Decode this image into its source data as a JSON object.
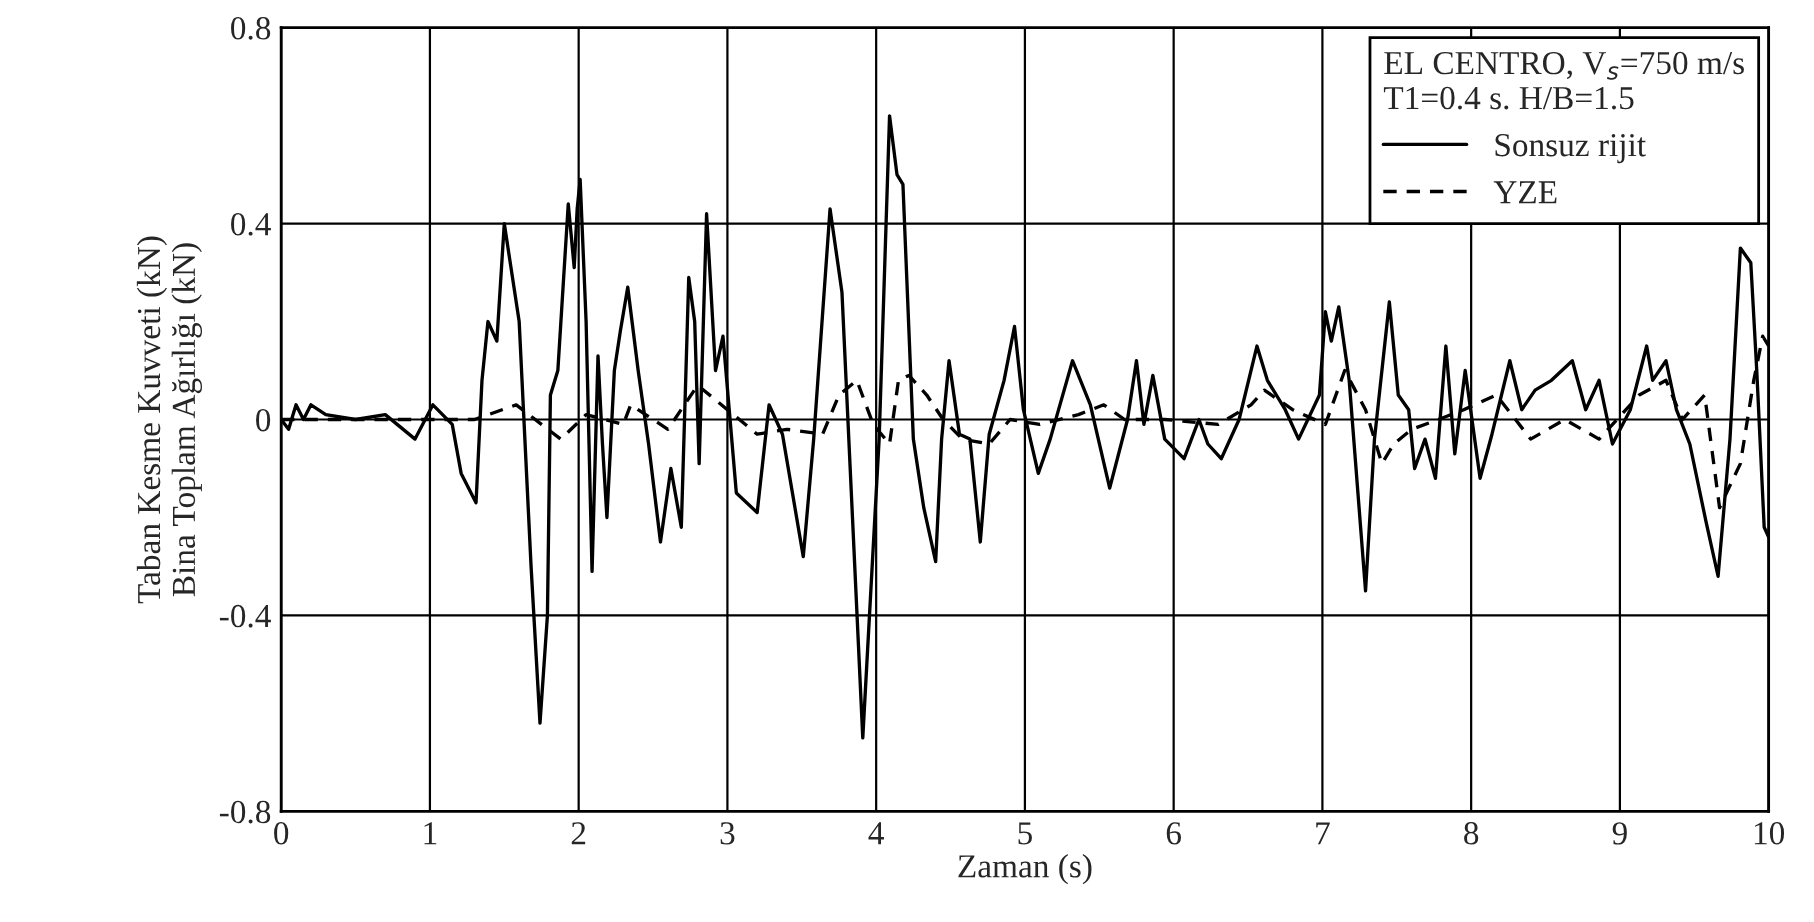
{
  "chart_data": {
    "type": "line",
    "xlabel": "Zaman (s)",
    "ylabel": "Taban Kesme Kuvveti (kN)\nBina Toplam Ağırlığı (kN)",
    "legend_title": "EL CENTRO, V$_{s}$=750 m/s\nT1=0.4 s. H/B=1.5",
    "legend": "top right",
    "grid": true,
    "xlim": [
      0,
      10
    ],
    "xticks": [
      0,
      1,
      2,
      3,
      4,
      5,
      6,
      7,
      8,
      9,
      10
    ],
    "ylim": [
      -0.8,
      0.8
    ],
    "yticks": [
      -0.8,
      -0.4,
      0,
      0.4,
      0.8
    ],
    "series": [
      {
        "name": "Sonsuz rijit",
        "color": "#000000",
        "line_style": "solid",
        "x": [
          0,
          0.05,
          0.1,
          0.15,
          0.2,
          0.3,
          0.5,
          0.7,
          0.9,
          1.02,
          1.15,
          1.21,
          1.31,
          1.35,
          1.39,
          1.45,
          1.5,
          1.6,
          1.68,
          1.74,
          1.79,
          1.81,
          1.86,
          1.93,
          1.97,
          1.99,
          2.01,
          2.05,
          2.09,
          2.13,
          2.16,
          2.19,
          2.24,
          2.28,
          2.33,
          2.4,
          2.47,
          2.55,
          2.62,
          2.69,
          2.74,
          2.78,
          2.81,
          2.86,
          2.92,
          2.97,
          3.06,
          3.2,
          3.28,
          3.37,
          3.51,
          3.58,
          3.69,
          3.77,
          3.91,
          4.02,
          4.09,
          4.14,
          4.18,
          4.25,
          4.32,
          4.4,
          4.44,
          4.49,
          4.56,
          4.63,
          4.7,
          4.76,
          4.86,
          4.93,
          4.99,
          5.09,
          5.17,
          5.32,
          5.44,
          5.57,
          5.69,
          5.75,
          5.8,
          5.86,
          5.94,
          6.07,
          6.17,
          6.23,
          6.32,
          6.44,
          6.56,
          6.63,
          6.75,
          6.84,
          6.98,
          7.02,
          7.06,
          7.11,
          7.18,
          7.29,
          7.35,
          7.45,
          7.51,
          7.58,
          7.62,
          7.69,
          7.76,
          7.83,
          7.89,
          7.96,
          8.06,
          8.14,
          8.26,
          8.34,
          8.43,
          8.54,
          8.68,
          8.77,
          8.86,
          8.95,
          9.07,
          9.18,
          9.22,
          9.31,
          9.38,
          9.47,
          9.58,
          9.66,
          9.74,
          9.81,
          9.88,
          9.92,
          9.97,
          10
        ],
        "values": [
          0,
          -0.02,
          0.03,
          0,
          0.03,
          0.01,
          0,
          0.01,
          -0.04,
          0.03,
          -0.01,
          -0.11,
          -0.17,
          0.08,
          0.2,
          0.16,
          0.4,
          0.2,
          -0.3,
          -0.62,
          -0.4,
          0.05,
          0.1,
          0.44,
          0.31,
          0.43,
          0.49,
          0.2,
          -0.31,
          0.13,
          -0.05,
          -0.2,
          0.1,
          0.18,
          0.27,
          0.1,
          -0.05,
          -0.25,
          -0.1,
          -0.22,
          0.29,
          0.2,
          -0.09,
          0.42,
          0.1,
          0.17,
          -0.15,
          -0.19,
          0.03,
          -0.03,
          -0.28,
          -0.04,
          0.43,
          0.26,
          -0.65,
          -0.04,
          0.62,
          0.5,
          0.48,
          -0.04,
          -0.18,
          -0.29,
          -0.04,
          0.12,
          -0.03,
          -0.04,
          -0.25,
          -0.03,
          0.08,
          0.19,
          0.02,
          -0.11,
          -0.04,
          0.12,
          0.03,
          -0.14,
          0,
          0.12,
          -0.01,
          0.09,
          -0.04,
          -0.08,
          0,
          -0.05,
          -0.08,
          0,
          0.15,
          0.08,
          0.02,
          -0.04,
          0.05,
          0.22,
          0.16,
          0.23,
          0.08,
          -0.35,
          -0.04,
          0.24,
          0.05,
          0.02,
          -0.1,
          -0.04,
          -0.12,
          0.15,
          -0.07,
          0.1,
          -0.12,
          -0.03,
          0.12,
          0.02,
          0.06,
          0.08,
          0.12,
          0.02,
          0.08,
          -0.05,
          0.02,
          0.15,
          0.08,
          0.12,
          0.02,
          -0.05,
          -0.21,
          -0.32,
          -0.04,
          0.35,
          0.32,
          0.1,
          -0.22,
          -0.24
        ]
      },
      {
        "name": "YZE",
        "color": "#000000",
        "line_style": "dashed",
        "x": [
          0,
          1,
          1.3,
          1.58,
          1.75,
          1.88,
          2.05,
          2.3,
          2.35,
          2.6,
          2.8,
          3.0,
          3.2,
          3.4,
          3.64,
          3.75,
          3.87,
          3.98,
          4.09,
          4.15,
          4.22,
          4.34,
          4.45,
          4.58,
          4.76,
          4.9,
          5.1,
          5.36,
          5.53,
          5.67,
          5.94,
          6.3,
          6.52,
          6.61,
          6.8,
          7.02,
          7.15,
          7.29,
          7.4,
          7.48,
          7.6,
          7.78,
          7.95,
          8.17,
          8.4,
          8.63,
          8.86,
          9.13,
          9.31,
          9.42,
          9.57,
          9.67,
          9.81,
          9.9,
          9.96,
          10
        ],
        "values": [
          0,
          0,
          0,
          0.03,
          -0.01,
          -0.04,
          0.01,
          -0.01,
          0.03,
          -0.02,
          0.07,
          0.02,
          -0.03,
          -0.02,
          -0.03,
          0.05,
          0.08,
          -0.01,
          -0.05,
          0.08,
          0.09,
          0.05,
          0,
          -0.04,
          -0.05,
          0,
          -0.01,
          0.01,
          0.03,
          0,
          0,
          -0.01,
          0.03,
          0.06,
          0.02,
          -0.01,
          0.1,
          0.02,
          -0.09,
          -0.05,
          -0.02,
          0,
          0.02,
          0.05,
          -0.04,
          0,
          -0.04,
          0.05,
          0.08,
          0,
          0.05,
          -0.18,
          -0.09,
          0.08,
          0.17,
          0.15
        ]
      }
    ]
  }
}
